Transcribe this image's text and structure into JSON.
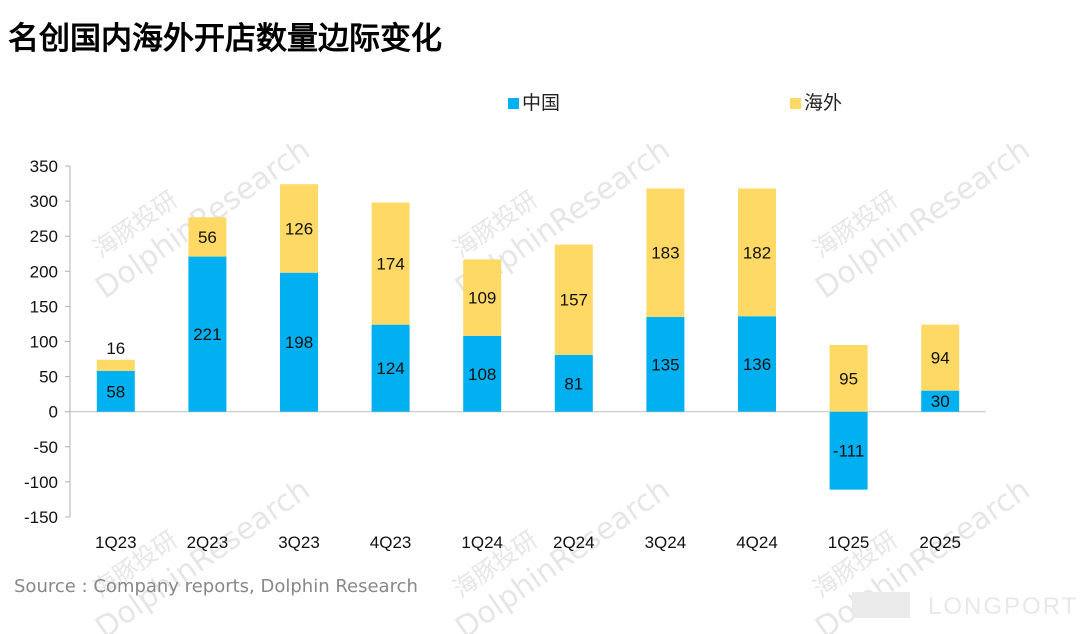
{
  "chart_data": {
    "type": "bar",
    "stacked": true,
    "title": "名创国内海外开店数量边际变化",
    "categories": [
      "1Q23",
      "2Q23",
      "3Q23",
      "4Q23",
      "1Q24",
      "2Q24",
      "3Q24",
      "4Q24",
      "1Q25",
      "2Q25"
    ],
    "series": [
      {
        "name": "中国",
        "color": "#00B0F0",
        "values": [
          58,
          221,
          198,
          124,
          108,
          81,
          135,
          136,
          -111,
          30
        ]
      },
      {
        "name": "海外",
        "color": "#FFD966",
        "values": [
          16,
          56,
          126,
          174,
          109,
          157,
          183,
          182,
          95,
          94
        ]
      }
    ],
    "ylim": [
      -150,
      350
    ],
    "yticks": [
      -150,
      -100,
      -50,
      0,
      50,
      100,
      150,
      200,
      250,
      300,
      350
    ],
    "legend_position": "top"
  },
  "source": "Source : Company reports, Dolphin Research",
  "watermark": {
    "text": "DolphinResearch",
    "cn": "海豚投研",
    "brand": "LONGPORT"
  }
}
